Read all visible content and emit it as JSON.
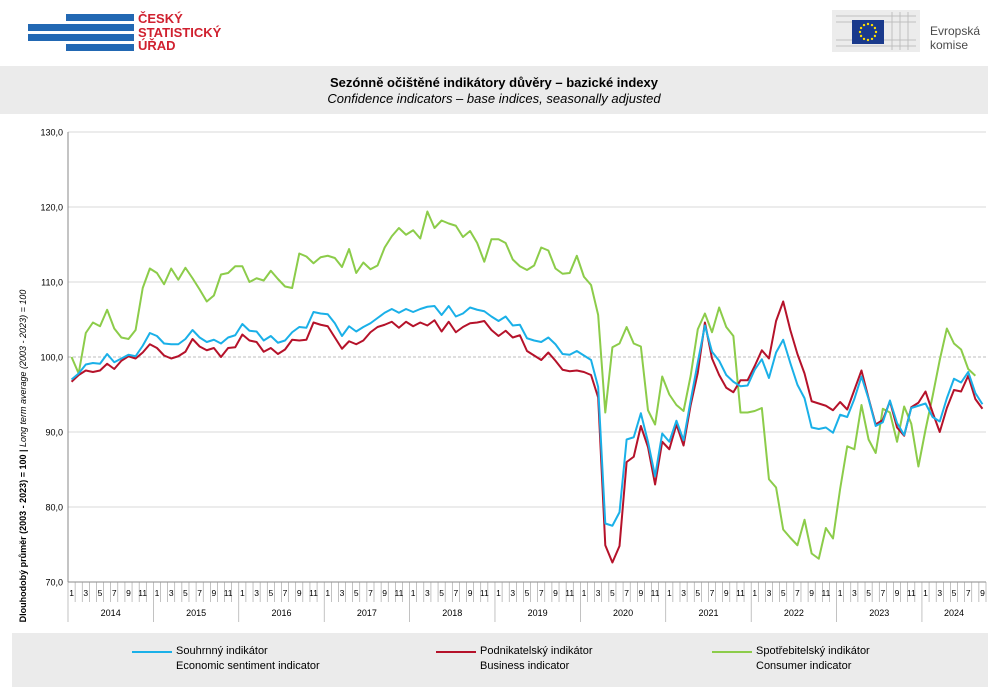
{
  "header": {
    "csu_logo_lines": [
      "ČESKÝ",
      "STATISTICKÝ",
      "ÚŘAD"
    ],
    "eu_logo_lines": [
      "Evropská",
      "komise"
    ]
  },
  "colors": {
    "economic": "#1ab0e8",
    "business": "#b5122a",
    "consumer": "#8ccc4a",
    "csu_red": "#d0212f",
    "csu_blue": "#2268b3"
  },
  "chart_data": {
    "type": "line",
    "title": "Sezónně očištěné indikátory důvěry – bazické indexy",
    "subtitle": "Confidence indicators – base indices, seasonally adjusted",
    "ylabel_bold": "Dlouhodobý průměr (2003 - 2023) = 100 | ",
    "ylabel_italic": "Long term average (2003 - 2023) = 100",
    "ylim": [
      70,
      130
    ],
    "yticks": [
      "70,0",
      "80,0",
      "90,0",
      "100,0",
      "110,0",
      "120,0",
      "130,0"
    ],
    "x_start": "2014-01",
    "x_end": "2024-08",
    "month_ticks": [
      "1",
      "3",
      "5",
      "7",
      "9",
      "11"
    ],
    "years": [
      "2014",
      "2015",
      "2016",
      "2017",
      "2018",
      "2019",
      "2020",
      "2021",
      "2022",
      "2023",
      "2024"
    ],
    "reference_line": 100,
    "series": [
      {
        "name_cz": "Souhrnný indikátor",
        "name_en": "Economic sentiment indicator",
        "values": [
          97.0,
          97.8,
          99.0,
          99.2,
          99.1,
          100.4,
          99.3,
          99.8,
          100.3,
          100.1,
          101.5,
          103.2,
          102.8,
          101.8,
          101.7,
          101.7,
          102.4,
          103.6,
          102.6,
          102.0,
          102.3,
          101.8,
          102.6,
          102.9,
          104.4,
          103.5,
          103.4,
          102.2,
          102.8,
          101.9,
          102.2,
          103.3,
          104.0,
          103.9,
          106.0,
          105.8,
          105.7,
          104.5,
          102.8,
          104.1,
          103.4,
          104.0,
          104.5,
          105.2,
          105.9,
          106.4,
          105.9,
          106.4,
          106.0,
          106.4,
          106.7,
          106.8,
          105.6,
          106.8,
          105.4,
          105.8,
          106.6,
          106.3,
          106.1,
          105.4,
          104.8,
          105.4,
          104.2,
          104.3,
          102.5,
          102.2,
          102.0,
          102.6,
          101.7,
          100.4,
          100.3,
          100.8,
          100.2,
          99.6,
          96.0,
          77.8,
          77.5,
          79.3,
          89.0,
          89.3,
          92.5,
          88.7,
          84.1,
          89.8,
          88.7,
          91.5,
          88.9,
          94.2,
          99.3,
          104.2,
          100.7,
          99.5,
          97.6,
          96.7,
          96.1,
          96.2,
          98.3,
          99.7,
          97.2,
          100.6,
          102.3,
          99.2,
          96.3,
          94.5,
          90.6,
          90.4,
          90.6,
          89.9,
          92.3,
          92.0,
          94.4,
          97.4,
          94.4,
          90.8,
          91.3,
          94.2,
          91.2,
          89.6,
          93.2,
          93.5,
          93.8,
          92.0,
          91.4,
          94.5,
          97.1,
          96.6,
          98.0,
          95.2,
          93.7
        ]
      },
      {
        "name_cz": "Podnikatelský indikátor",
        "name_en": "Business indicator",
        "values": [
          96.7,
          97.6,
          98.2,
          98.0,
          98.2,
          99.1,
          98.4,
          99.5,
          100.1,
          99.8,
          100.6,
          101.7,
          101.2,
          100.2,
          99.8,
          100.1,
          100.7,
          102.4,
          101.4,
          100.9,
          101.2,
          100.0,
          101.2,
          101.3,
          103.0,
          102.2,
          102.0,
          100.7,
          101.2,
          100.4,
          101.0,
          102.3,
          102.2,
          102.3,
          104.6,
          104.3,
          104.1,
          102.6,
          101.1,
          102.1,
          101.7,
          102.2,
          103.3,
          104.0,
          104.3,
          104.7,
          103.9,
          104.7,
          104.1,
          104.6,
          104.2,
          104.9,
          103.4,
          104.7,
          103.3,
          104.0,
          104.5,
          104.6,
          104.8,
          103.6,
          102.8,
          103.5,
          102.6,
          102.9,
          100.8,
          100.2,
          99.6,
          100.6,
          99.5,
          98.3,
          98.1,
          98.2,
          98.0,
          97.6,
          94.6,
          74.9,
          72.6,
          74.8,
          86.0,
          86.7,
          90.8,
          88.0,
          83.0,
          88.7,
          87.7,
          91.0,
          88.2,
          93.6,
          97.9,
          104.6,
          99.8,
          97.6,
          95.9,
          95.3,
          96.9,
          96.9,
          98.8,
          100.9,
          99.8,
          104.8,
          107.4,
          103.6,
          100.4,
          97.8,
          94.1,
          93.8,
          93.5,
          92.9,
          94.0,
          93.0,
          95.6,
          98.2,
          94.5,
          91.0,
          91.6,
          94.1,
          90.6,
          89.5,
          93.3,
          93.9,
          95.4,
          92.6,
          90.0,
          93.2,
          95.6,
          95.4,
          97.5,
          94.4,
          93.1
        ]
      },
      {
        "name_cz": "Spotřebitelský indikátor",
        "name_en": "Consumer indicator",
        "values": [
          100.0,
          97.8,
          103.2,
          104.6,
          104.1,
          106.3,
          103.8,
          102.6,
          102.4,
          103.6,
          109.2,
          111.8,
          111.2,
          109.7,
          111.8,
          110.3,
          111.9,
          110.5,
          109.0,
          107.4,
          108.2,
          111.0,
          111.2,
          112.1,
          112.1,
          110.0,
          110.5,
          110.2,
          111.5,
          110.4,
          109.4,
          109.2,
          113.8,
          113.4,
          112.5,
          113.3,
          113.5,
          113.2,
          112.0,
          114.4,
          111.2,
          112.6,
          111.7,
          112.2,
          114.6,
          116.1,
          117.2,
          116.3,
          116.9,
          115.8,
          119.4,
          117.2,
          118.2,
          117.8,
          117.5,
          116.0,
          116.8,
          115.2,
          112.7,
          115.7,
          115.7,
          115.2,
          113.0,
          112.1,
          111.6,
          112.2,
          114.6,
          114.2,
          111.8,
          111.1,
          111.2,
          113.5,
          110.7,
          109.6,
          105.6,
          92.6,
          101.3,
          101.8,
          104.0,
          101.8,
          101.4,
          92.9,
          91.0,
          97.4,
          95.0,
          93.6,
          92.8,
          97.5,
          103.7,
          105.8,
          103.3,
          106.6,
          104.0,
          102.8,
          92.6,
          92.6,
          92.8,
          93.2,
          83.7,
          82.6,
          77.0,
          75.9,
          74.9,
          78.3,
          73.8,
          73.1,
          77.2,
          75.8,
          82.4,
          88.1,
          87.7,
          93.6,
          89.0,
          87.2,
          93.1,
          92.6,
          88.7,
          93.4,
          91.1,
          85.4,
          90.3,
          94.8,
          99.6,
          103.8,
          101.8,
          101.0,
          98.4,
          97.5
        ]
      }
    ]
  },
  "legend": [
    {
      "cz": "Souhrnný indikátor",
      "en": "Economic sentiment indicator"
    },
    {
      "cz": "Podnikatelský indikátor",
      "en": "Business indicator"
    },
    {
      "cz": "Spotřebitelský indikátor",
      "en": "Consumer indicator"
    }
  ]
}
